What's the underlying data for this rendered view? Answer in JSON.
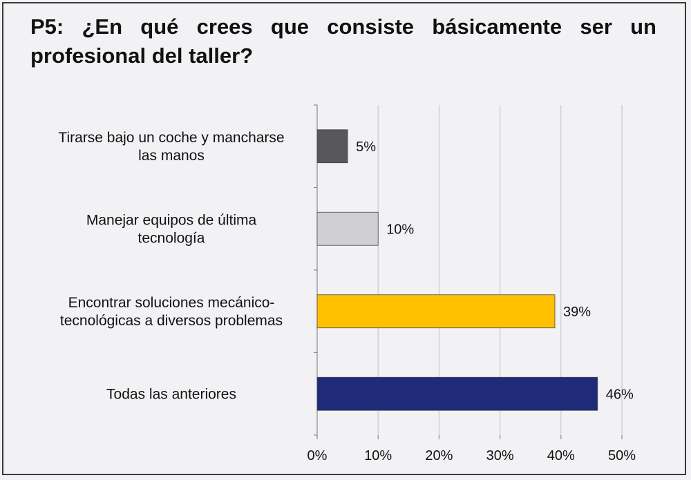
{
  "title": "P5: ¿En qué crees que consiste básicamente ser un profesional del taller?",
  "chart_data": {
    "type": "bar",
    "orientation": "horizontal",
    "categories": [
      [
        "Tirarse bajo un coche y mancharse",
        "las manos"
      ],
      [
        "Manejar equipos de última",
        "tecnología"
      ],
      [
        "Encontrar soluciones mecánico-",
        "tecnológicas a diversos problemas"
      ],
      [
        "Todas las anteriores"
      ]
    ],
    "values": [
      5,
      10,
      39,
      46
    ],
    "value_labels": [
      "5%",
      "10%",
      "39%",
      "46%"
    ],
    "colors": [
      "#58585a",
      "#d0d0d2",
      "#ffc000",
      "#1f2a78"
    ],
    "xlim": [
      0,
      50
    ],
    "xticks": [
      0,
      10,
      20,
      30,
      40,
      50
    ],
    "xtick_labels": [
      "0%",
      "10%",
      "20%",
      "30%",
      "40%",
      "50%"
    ],
    "grid": "vertical"
  }
}
